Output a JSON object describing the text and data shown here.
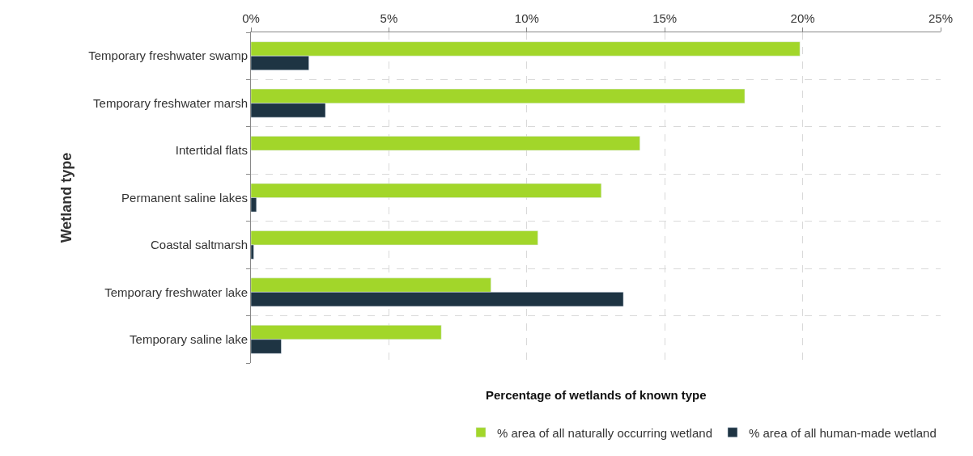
{
  "chart_data": {
    "type": "bar",
    "orientation": "horizontal",
    "xlabel": "Percentage of wetlands of known type",
    "ylabel": "Wetland type",
    "categories": [
      "Temporary freshwater swamp",
      "Temporary freshwater marsh",
      "Intertidal flats",
      "Permanent saline lakes",
      "Coastal saltmarsh",
      "Temporary freshwater lake",
      "Temporary saline lake"
    ],
    "series": [
      {
        "name": "% area of all naturally occurring wetland",
        "color": "#a2d62a",
        "values": [
          19.9,
          17.9,
          14.1,
          12.7,
          10.4,
          8.7,
          6.9
        ]
      },
      {
        "name": "% area of all human-made wetland",
        "color": "#1e3443",
        "values": [
          2.1,
          2.7,
          null,
          0.2,
          0.1,
          13.5,
          1.1
        ]
      }
    ],
    "xlim": [
      0,
      25
    ],
    "xticks": [
      {
        "value": 0,
        "label": "0%"
      },
      {
        "value": 5,
        "label": "5%"
      },
      {
        "value": 10,
        "label": "10%"
      },
      {
        "value": 15,
        "label": "15%"
      },
      {
        "value": 20,
        "label": "20%"
      },
      {
        "value": 25,
        "label": "25%"
      }
    ],
    "grid": true,
    "legend": "bottom right"
  }
}
